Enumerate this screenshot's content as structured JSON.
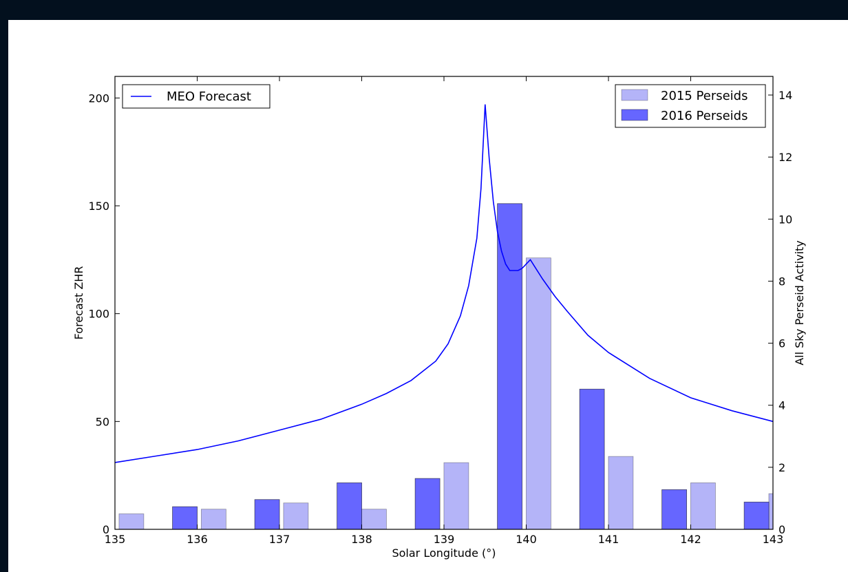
{
  "chart_data": {
    "type": "bar",
    "xlabel": "Solar Longitude (°)",
    "ylabel": "Forecast ZHR",
    "y2label": "All Sky Perseid Activity",
    "xlim": [
      135,
      143
    ],
    "ylim": [
      0,
      210
    ],
    "y2lim": [
      0,
      14.6
    ],
    "xticks": [
      "135",
      "136",
      "137",
      "138",
      "139",
      "140",
      "141",
      "142",
      "143"
    ],
    "yticks": [
      "0",
      "50",
      "100",
      "150",
      "200"
    ],
    "y2ticks": [
      "0",
      "2",
      "4",
      "6",
      "8",
      "10",
      "12",
      "14"
    ],
    "line_series": {
      "name": "MEO Forecast",
      "color": "#0000ff",
      "x": [
        135.0,
        135.5,
        136.0,
        136.5,
        137.0,
        137.5,
        138.0,
        138.3,
        138.6,
        138.9,
        139.05,
        139.2,
        139.3,
        139.4,
        139.45,
        139.5,
        139.55,
        139.6,
        139.65,
        139.7,
        139.75,
        139.8,
        139.9,
        139.95,
        140.0,
        140.05,
        140.1,
        140.2,
        140.35,
        140.5,
        140.75,
        141.0,
        141.5,
        142.0,
        142.5,
        143.0
      ],
      "y": [
        31,
        34,
        37,
        41,
        46,
        51,
        58,
        63,
        69,
        78,
        86,
        99,
        113,
        135,
        158,
        197,
        172,
        152,
        138,
        129,
        123,
        120,
        120,
        121,
        123,
        125,
        122,
        116,
        108,
        101,
        90,
        82,
        70,
        61,
        55,
        50
      ]
    },
    "bar_series": [
      {
        "name": "2015 Perseids",
        "color": "#b4b4f8",
        "x": [
          135.2,
          136.2,
          137.2,
          138.15,
          139.15,
          140.15,
          141.15,
          142.15,
          143.1
        ],
        "values": [
          0.5,
          0.65,
          0.85,
          0.65,
          2.15,
          8.75,
          2.35,
          1.5,
          1.15
        ]
      },
      {
        "name": "2016 Perseids",
        "color": "#6666ff",
        "x": [
          135.85,
          136.85,
          137.85,
          138.8,
          139.8,
          140.8,
          141.8,
          142.8
        ],
        "values": [
          0.73,
          0.96,
          1.5,
          1.64,
          10.5,
          4.52,
          1.28,
          0.88
        ]
      }
    ],
    "legend_left": "upper-left",
    "legend_right": "upper-right",
    "grid": false
  }
}
